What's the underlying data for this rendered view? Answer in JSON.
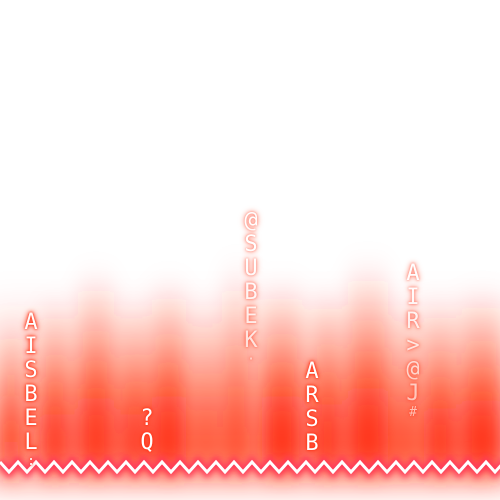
{
  "theme": {
    "background": "#ffffff",
    "glow_color": "#ff2a0a",
    "zigzag_color": "#ffffff",
    "zigzag_glow": "#ff3355"
  },
  "columns": [
    {
      "id": "col-1",
      "glyphs": [
        "A",
        "I",
        "S",
        "B",
        "E",
        "L",
        ":"
      ],
      "faint": false
    },
    {
      "id": "col-2",
      "glyphs": [
        "?",
        "Q"
      ],
      "faint": false
    },
    {
      "id": "col-3",
      "glyphs": [
        "@",
        "S",
        "U",
        "B",
        "E",
        "K",
        "·"
      ],
      "faint": true
    },
    {
      "id": "col-4",
      "glyphs": [
        "A",
        "R",
        "S",
        "B"
      ],
      "faint": false
    },
    {
      "id": "col-5",
      "glyphs": [
        "A",
        "I",
        "R",
        ">",
        "@",
        "J",
        "#"
      ],
      "faint": true
    }
  ]
}
